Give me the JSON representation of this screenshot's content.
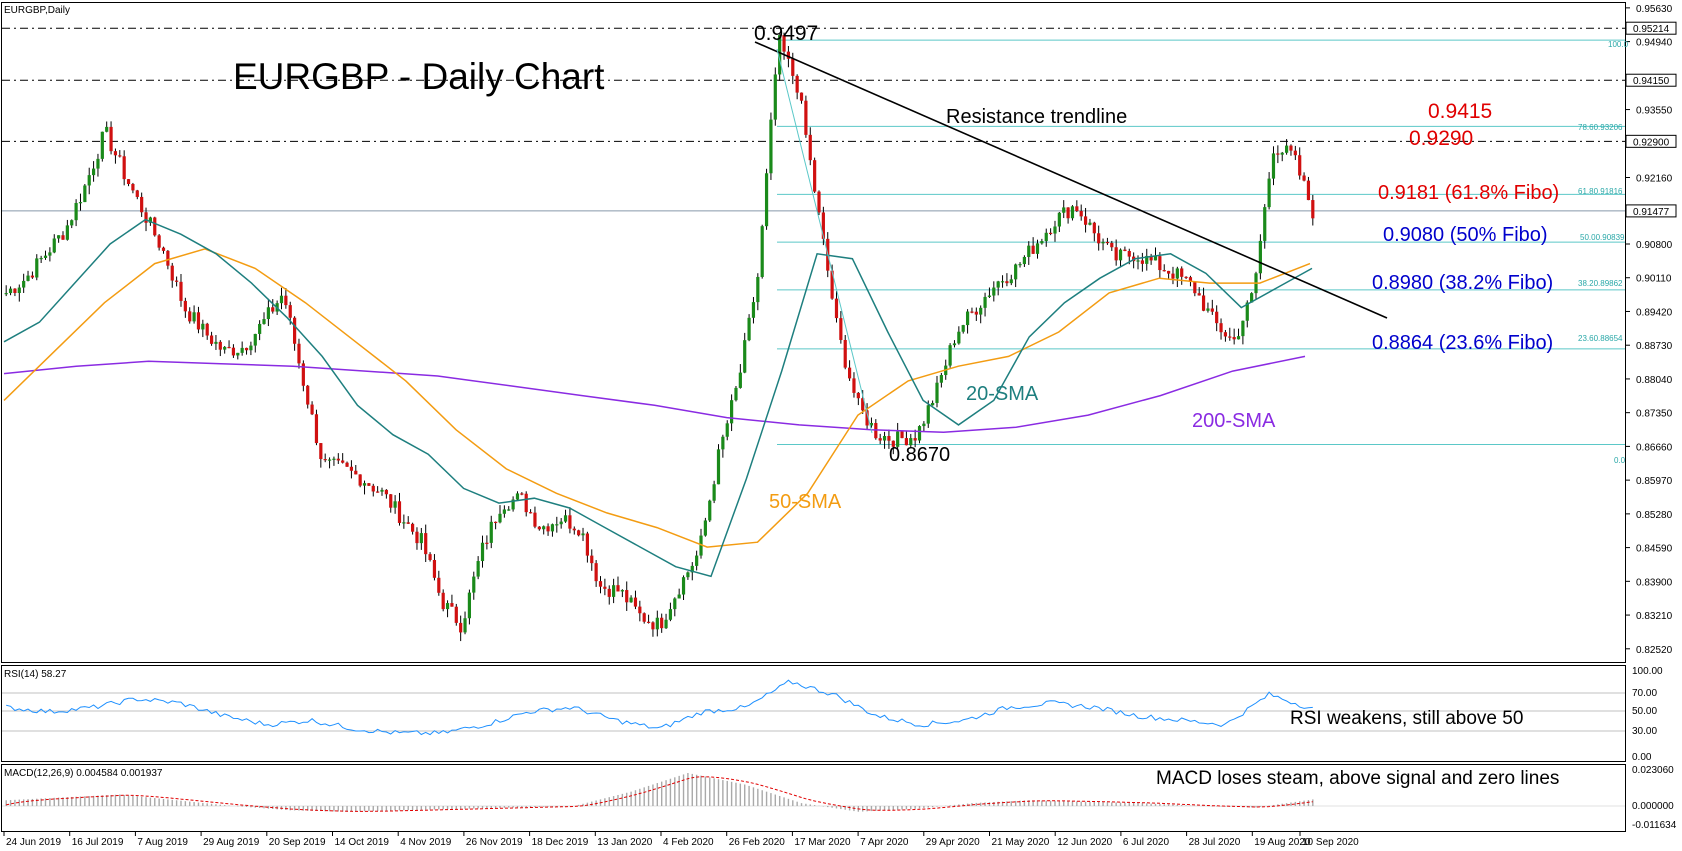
{
  "header": {
    "symbol": "EURGBP,Daily",
    "title": "EURGBP - Daily Chart"
  },
  "annotations": {
    "peak": "0.9497",
    "low": "0.8670",
    "r1": "0.9415",
    "r2": "0.9290",
    "fib618": "0.9181 (61.8% Fibo)",
    "fib50": "0.9080 (50% Fibo)",
    "fib382": "0.8980 (38.2% Fibo)",
    "fib236": "0.8864 (23.6% Fibo)",
    "trendline": "Resistance trendline",
    "sma20": "20-SMA",
    "sma50": "50-SMA",
    "sma200": "200-SMA",
    "rsi_note": "RSI weakens, still above 50",
    "macd_note": "MACD loses steam, above signal and zero lines"
  },
  "fib_small": {
    "f100": "100.0",
    "f786": "78.60.93206",
    "f618": "61.80.91816",
    "f50": "50.00.90839",
    "f382": "38.20.89862",
    "f236": "23.60.88654",
    "f0": "0.0"
  },
  "price_axis": {
    "ticks": [
      "0.95630",
      "0.94940",
      "0.94150",
      "0.93550",
      "0.92900",
      "0.92160",
      "0.91477",
      "0.90800",
      "0.90110",
      "0.89420",
      "0.88730",
      "0.88040",
      "0.87350",
      "0.86660",
      "0.85970",
      "0.85280",
      "0.84590",
      "0.83900",
      "0.83210",
      "0.82520"
    ],
    "highlight": [
      "0.95214",
      "0.94150",
      "0.92900",
      "0.91477"
    ]
  },
  "x_axis": {
    "labels": [
      "24 Jun 2019",
      "16 Jul 2019",
      "7 Aug 2019",
      "29 Aug 2019",
      "20 Sep 2019",
      "14 Oct 2019",
      "4 Nov 2019",
      "26 Nov 2019",
      "18 Dec 2019",
      "13 Jan 2020",
      "4 Feb 2020",
      "26 Feb 2020",
      "17 Mar 2020",
      "7 Apr 2020",
      "29 Apr 2020",
      "21 May 2020",
      "12 Jun 2020",
      "6 Jul 2020",
      "28 Jul 2020",
      "19 Aug 2020",
      "10 Sep 2020"
    ]
  },
  "rsi": {
    "header": "RSI(14) 58.27",
    "ticks": [
      "100.00",
      "70.00",
      "50.00",
      "30.00",
      "0.00"
    ]
  },
  "macd": {
    "header": "MACD(12,26,9) 0.004584 0.001937",
    "ticks": [
      "0.023060",
      "0.000000",
      "-0.011634"
    ]
  },
  "chart_data": {
    "type": "candlestick",
    "symbol": "EURGBP",
    "timeframe": "Daily",
    "title": "EURGBP - Daily Chart",
    "date_range": [
      "24 Jun 2019",
      "10 Sep 2020"
    ],
    "ylim": [
      0.8225,
      0.9575
    ],
    "key_levels": [
      0.9497,
      0.9415,
      0.929,
      0.9181,
      0.908,
      0.898,
      0.8864,
      0.867
    ],
    "current_price": 0.91477,
    "price_path": [
      0.898,
      0.901,
      0.906,
      0.911,
      0.92,
      0.931,
      0.922,
      0.914,
      0.906,
      0.895,
      0.89,
      0.886,
      0.887,
      0.892,
      0.898,
      0.88,
      0.863,
      0.862,
      0.86,
      0.857,
      0.852,
      0.847,
      0.835,
      0.83,
      0.845,
      0.855,
      0.856,
      0.85,
      0.852,
      0.85,
      0.838,
      0.837,
      0.832,
      0.83,
      0.838,
      0.845,
      0.865,
      0.88,
      0.902,
      0.9497,
      0.94,
      0.915,
      0.89,
      0.875,
      0.869,
      0.868,
      0.869,
      0.878,
      0.89,
      0.895,
      0.9,
      0.903,
      0.908,
      0.913,
      0.916,
      0.91,
      0.905,
      0.906,
      0.904,
      0.902,
      0.899,
      0.892,
      0.888,
      0.898,
      0.928,
      0.926,
      0.9147
    ],
    "sma20": [
      0.888,
      0.892,
      0.9,
      0.908,
      0.913,
      0.91,
      0.906,
      0.9,
      0.893,
      0.885,
      0.875,
      0.869,
      0.865,
      0.858,
      0.855,
      0.856,
      0.854,
      0.85,
      0.846,
      0.842,
      0.84,
      0.86,
      0.882,
      0.906,
      0.905,
      0.89,
      0.876,
      0.871,
      0.876,
      0.889,
      0.896,
      0.901,
      0.905,
      0.906,
      0.902,
      0.895,
      0.899,
      0.903
    ],
    "sma50": [
      0.876,
      0.886,
      0.896,
      0.904,
      0.907,
      0.903,
      0.896,
      0.888,
      0.88,
      0.87,
      0.862,
      0.857,
      0.853,
      0.85,
      0.846,
      0.847,
      0.857,
      0.873,
      0.88,
      0.883,
      0.885,
      0.89,
      0.898,
      0.901,
      0.9,
      0.9,
      0.904
    ],
    "sma200": [
      0.8815,
      0.883,
      0.884,
      0.8835,
      0.883,
      0.882,
      0.881,
      0.879,
      0.877,
      0.875,
      0.8725,
      0.871,
      0.87,
      0.8695,
      0.8705,
      0.873,
      0.877,
      0.882,
      0.885
    ],
    "rsi": [
      60,
      55,
      60,
      70,
      65,
      50,
      40,
      45,
      35,
      30,
      30,
      40,
      55,
      60,
      45,
      35,
      55,
      60,
      90,
      75,
      50,
      40,
      45,
      60,
      65,
      60,
      50,
      45,
      40,
      75,
      58.27
    ],
    "macd": [
      0.004,
      0.006,
      0.008,
      0.004,
      0.0,
      -0.003,
      -0.004,
      -0.003,
      -0.002,
      -0.001,
      0.0,
      0.01,
      0.023,
      0.015,
      0.002,
      -0.004,
      -0.002,
      0.002,
      0.004,
      0.003,
      0.002,
      0.0,
      -0.001,
      0.004584
    ],
    "macd_signal": 0.001937
  }
}
